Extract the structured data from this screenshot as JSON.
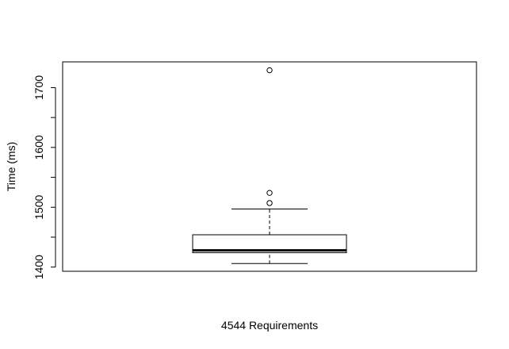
{
  "chart_data": {
    "type": "boxplot",
    "title": "",
    "xlabel": "4544 Requirements",
    "ylabel": "Time (ms)",
    "ylim": [
      1393,
      1743
    ],
    "y_ticks": [
      1400,
      1500,
      1600,
      1700
    ],
    "y_tick_labels": [
      "1400",
      "1500",
      "1600",
      "1700"
    ],
    "y_minor_ticks": [
      1450,
      1550,
      1650
    ],
    "grid": false,
    "legend": "none",
    "box": {
      "whisker_low": 1406,
      "q1": 1424,
      "median": 1428,
      "q3": 1454,
      "whisker_high": 1497,
      "outliers": [
        1507,
        1524,
        1729
      ]
    },
    "colors": {
      "line": "#000000",
      "fill": "#ffffff"
    }
  }
}
